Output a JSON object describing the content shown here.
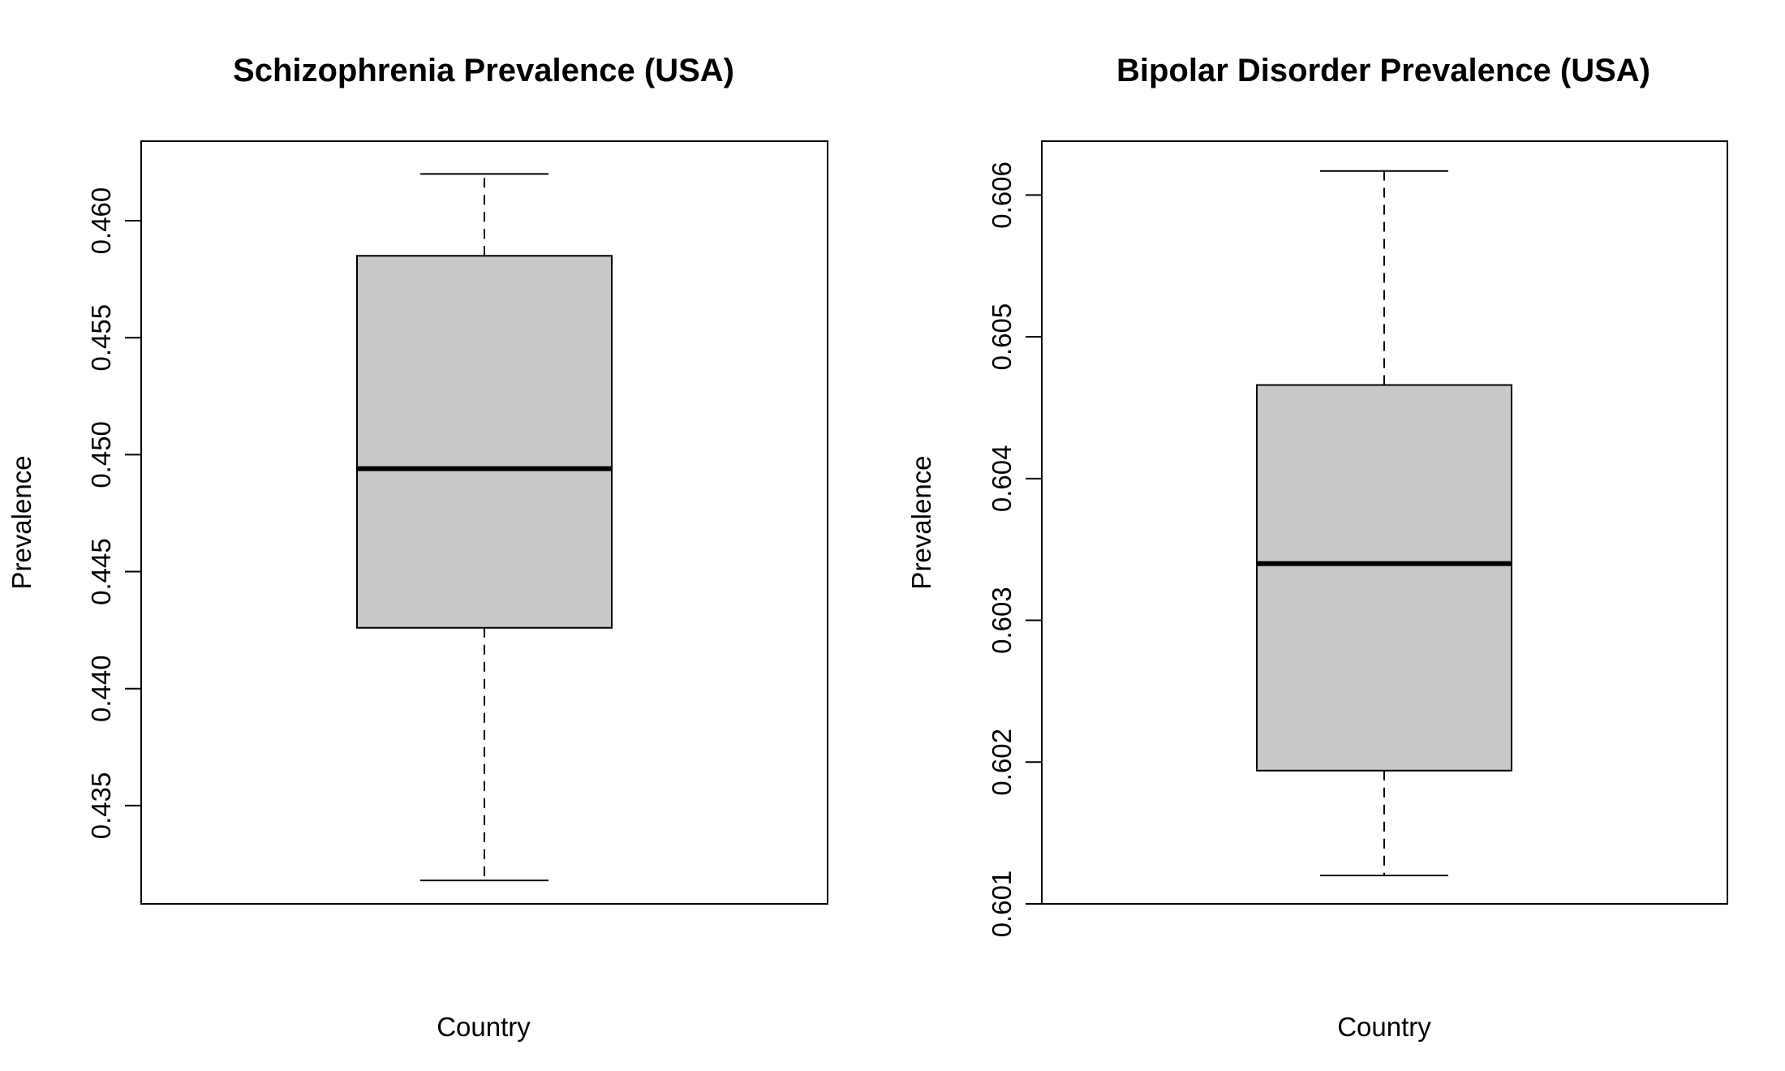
{
  "chart_data": [
    {
      "type": "boxplot",
      "title": "Schizophrenia Prevalence (USA)",
      "xlabel": "Country",
      "ylabel": "Prevalence",
      "ylim": [
        0.4308,
        0.4634
      ],
      "yticks": [
        0.435,
        0.44,
        0.445,
        0.45,
        0.455,
        0.46
      ],
      "ytick_labels": [
        "0.435",
        "0.440",
        "0.445",
        "0.450",
        "0.455",
        "0.460"
      ],
      "box": {
        "whisker_low": 0.4318,
        "q1": 0.4426,
        "median": 0.4494,
        "q3": 0.4585,
        "whisker_high": 0.462
      },
      "grid": false,
      "box_color": "#c8c8c8"
    },
    {
      "type": "boxplot",
      "title": "Bipolar Disorder Prevalence (USA)",
      "xlabel": "Country",
      "ylabel": "Prevalence",
      "ylim": [
        0.601,
        0.60638
      ],
      "yticks": [
        0.601,
        0.602,
        0.603,
        0.604,
        0.605,
        0.606
      ],
      "ytick_labels": [
        "0.601",
        "0.602",
        "0.603",
        "0.604",
        "0.605",
        "0.606"
      ],
      "box": {
        "whisker_low": 0.6012,
        "q1": 0.60194,
        "median": 0.6034,
        "q3": 0.60466,
        "whisker_high": 0.60617
      },
      "grid": false,
      "box_color": "#c8c8c8"
    }
  ]
}
